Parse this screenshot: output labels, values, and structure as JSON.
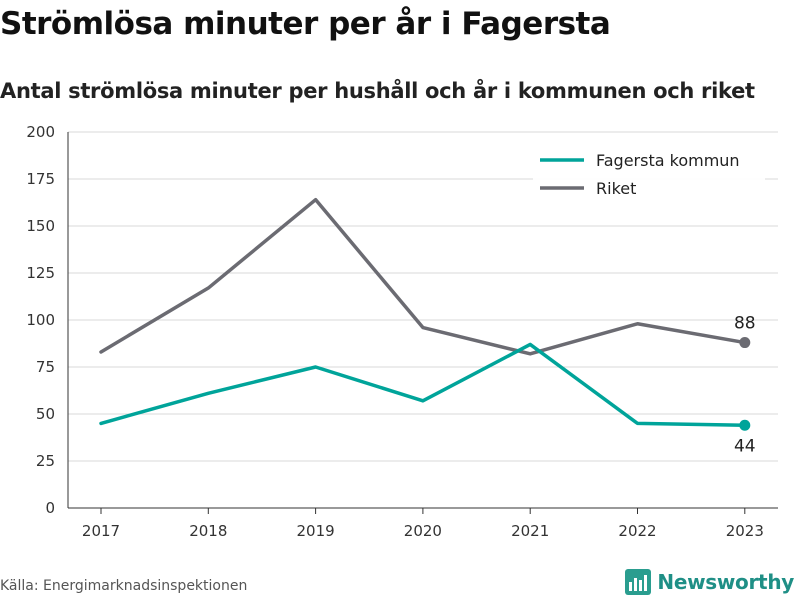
{
  "page": {
    "title": "Strömlösa minuter per år i Fagersta",
    "subtitle": "Antal strömlösa minuter per hushåll och år i kommunen och riket",
    "source": "Källa: Energimarknadsinspektionen",
    "brand": "Newsworthy"
  },
  "colors": {
    "fagersta": "#00a49a",
    "riket": "#6b6b72",
    "grid": "#d9d9d9",
    "axis": "#333333",
    "brand": "#1f8f86"
  },
  "chart_data": {
    "type": "line",
    "title": "Strömlösa minuter per år i Fagersta",
    "subtitle": "Antal strömlösa minuter per hushåll och år i kommunen och riket",
    "x": [
      "2017",
      "2018",
      "2019",
      "2020",
      "2021",
      "2022",
      "2023"
    ],
    "ylim": [
      0,
      200
    ],
    "yticks": [
      0,
      25,
      50,
      75,
      100,
      125,
      150,
      175,
      200
    ],
    "grid": true,
    "legend_position": "top-right",
    "series": [
      {
        "name": "Fagersta kommun",
        "color": "#00a49a",
        "values": [
          45,
          61,
          75,
          57,
          87,
          45,
          44
        ],
        "end_label": "44"
      },
      {
        "name": "Riket",
        "color": "#6b6b72",
        "values": [
          83,
          117,
          164,
          96,
          82,
          98,
          88
        ],
        "end_label": "88"
      }
    ]
  }
}
